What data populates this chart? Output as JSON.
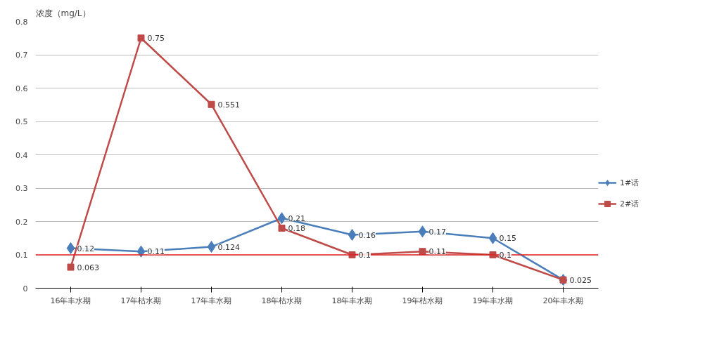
{
  "chart_data": {
    "type": "line",
    "ylabel": "浓度（mg/L）",
    "categories": [
      "16年丰水期",
      "17年枯水期",
      "17年丰水期",
      "18年枯水期",
      "18年丰水期",
      "19年枯水期",
      "19年丰水期",
      "20年丰水期"
    ],
    "series": [
      {
        "name": "1#话",
        "color": "#4a7ebb",
        "marker": "diamond",
        "values": [
          0.12,
          0.11,
          0.124,
          0.21,
          0.16,
          0.17,
          0.15,
          0.025
        ],
        "value_labels": [
          "0.12",
          "0.11",
          "0.124",
          "0.21",
          "0.16",
          "0.17",
          "0.15",
          null
        ]
      },
      {
        "name": "2#话",
        "color": "#be4b48",
        "marker": "square",
        "values": [
          0.063,
          0.75,
          0.551,
          0.18,
          0.1,
          0.11,
          0.1,
          0.025
        ],
        "value_labels": [
          "0.063",
          "0.75",
          "0.551",
          "0.18",
          "0.1",
          "0.11",
          "0.1",
          "0.025"
        ]
      }
    ],
    "ylim": [
      0,
      0.8
    ],
    "yticks": [
      0,
      0.1,
      0.2,
      0.3,
      0.4,
      0.5,
      0.6,
      0.7,
      0.8
    ],
    "ref_lines": [
      {
        "axis": "y",
        "value": 0.1,
        "color": "#e02020"
      }
    ],
    "grid": "y",
    "legend": "right"
  }
}
